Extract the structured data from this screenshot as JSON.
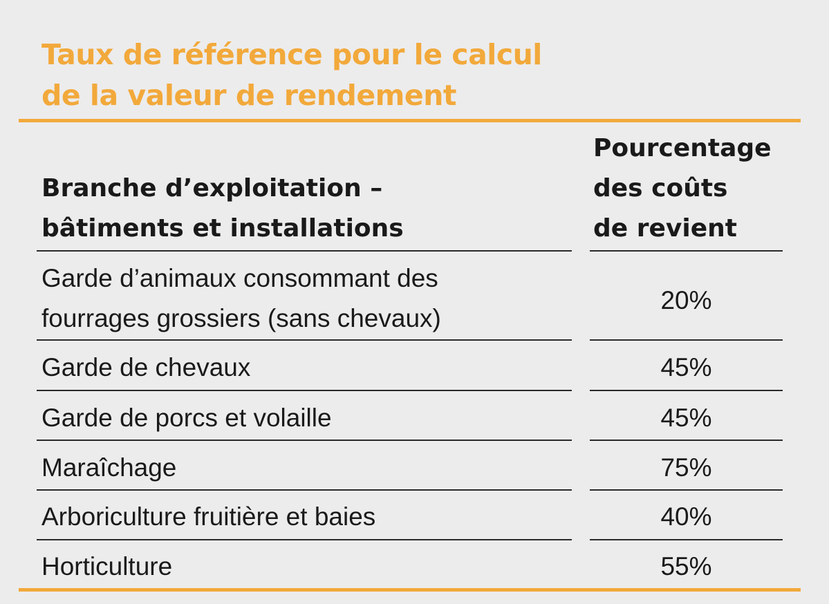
{
  "title": {
    "line1": "Taux de référence pour le calcul",
    "line2": "de la valeur de rendement"
  },
  "colors": {
    "accent": "#f2a93b",
    "background": "#ececec",
    "text": "#1a1a1a"
  },
  "table": {
    "headers": {
      "branch": {
        "line1": "Branche d’exploitation –",
        "line2": "bâtiments et installations"
      },
      "percentage": {
        "line1": "Pourcentage",
        "line2": "des coûts",
        "line3": "de revient"
      }
    },
    "rows": [
      {
        "label_line1": "Garde d’animaux consommant des",
        "label_line2": "fourrages grossiers (sans chevaux)",
        "value": "20%"
      },
      {
        "label_line1": "Garde de chevaux",
        "value": "45%"
      },
      {
        "label_line1": "Garde de porcs et volaille",
        "value": "45%"
      },
      {
        "label_line1": "Maraîchage",
        "value": "75%"
      },
      {
        "label_line1": "Arboriculture fruitière et baies",
        "value": "40%"
      },
      {
        "label_line1": "Horticulture",
        "value": "55%"
      }
    ]
  }
}
